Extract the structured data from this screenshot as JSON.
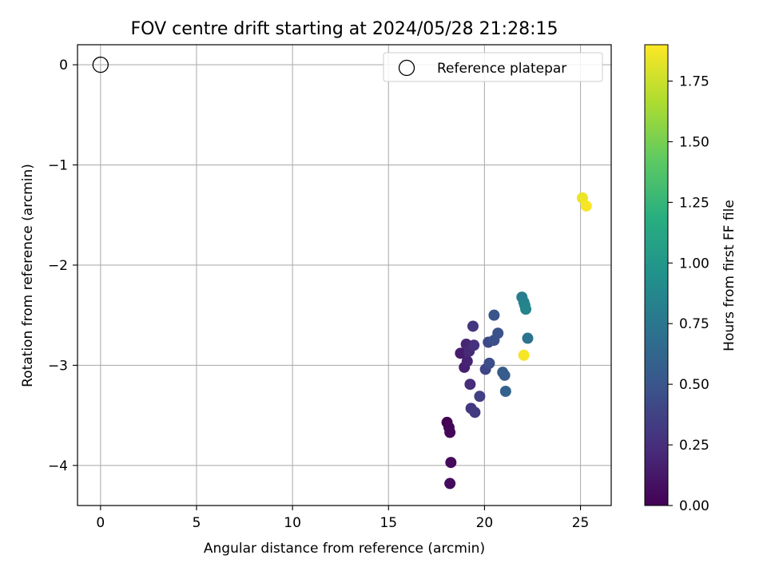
{
  "chart_data": {
    "type": "scatter",
    "title": "FOV centre drift starting at 2024/05/28 21:28:15",
    "xlabel": "Angular distance from reference (arcmin)",
    "ylabel": "Rotation from reference (arcmin)",
    "xlim": [
      -1.2,
      26.6
    ],
    "ylim": [
      -4.4,
      0.2
    ],
    "xticks": [
      0,
      5,
      10,
      15,
      20,
      25
    ],
    "yticks": [
      0,
      -1,
      -2,
      -3,
      -4
    ],
    "xtick_labels": [
      "0",
      "5",
      "10",
      "15",
      "20",
      "25"
    ],
    "ytick_labels": [
      "0",
      "−1",
      "−2",
      "−3",
      "−4"
    ],
    "grid": true,
    "legend": {
      "placement": "top-right",
      "entries": [
        "Reference platepar"
      ]
    },
    "reference_point": {
      "name": "Reference platepar",
      "x": 0,
      "y": 0
    },
    "colorbar": {
      "label": "Hours from first FF file",
      "range": [
        0,
        1.9
      ],
      "ticks": [
        0,
        0.25,
        0.5,
        0.75,
        1.0,
        1.25,
        1.5,
        1.75
      ],
      "tick_labels": [
        "0.00",
        "0.25",
        "0.50",
        "0.75",
        "1.00",
        "1.25",
        "1.50",
        "1.75"
      ],
      "colormap": "viridis"
    },
    "points": [
      {
        "x": 18.05,
        "y": -3.57,
        "c": 0.0
      },
      {
        "x": 18.15,
        "y": -3.62,
        "c": 0.02
      },
      {
        "x": 18.2,
        "y": -3.67,
        "c": 0.03
      },
      {
        "x": 18.25,
        "y": -3.97,
        "c": 0.05
      },
      {
        "x": 18.2,
        "y": -4.18,
        "c": 0.06
      },
      {
        "x": 18.75,
        "y": -2.88,
        "c": 0.15
      },
      {
        "x": 18.95,
        "y": -3.02,
        "c": 0.17
      },
      {
        "x": 19.1,
        "y": -2.96,
        "c": 0.19
      },
      {
        "x": 19.05,
        "y": -2.79,
        "c": 0.2
      },
      {
        "x": 19.2,
        "y": -2.86,
        "c": 0.22
      },
      {
        "x": 19.25,
        "y": -3.19,
        "c": 0.24
      },
      {
        "x": 19.45,
        "y": -2.8,
        "c": 0.26
      },
      {
        "x": 19.4,
        "y": -2.61,
        "c": 0.28
      },
      {
        "x": 19.3,
        "y": -3.43,
        "c": 0.3
      },
      {
        "x": 19.5,
        "y": -3.47,
        "c": 0.32
      },
      {
        "x": 19.75,
        "y": -3.31,
        "c": 0.36
      },
      {
        "x": 20.05,
        "y": -3.04,
        "c": 0.4
      },
      {
        "x": 20.2,
        "y": -2.77,
        "c": 0.42
      },
      {
        "x": 20.25,
        "y": -2.98,
        "c": 0.44
      },
      {
        "x": 20.5,
        "y": -2.75,
        "c": 0.46
      },
      {
        "x": 20.7,
        "y": -2.68,
        "c": 0.48
      },
      {
        "x": 20.5,
        "y": -2.5,
        "c": 0.5
      },
      {
        "x": 20.95,
        "y": -3.07,
        "c": 0.54
      },
      {
        "x": 21.05,
        "y": -3.1,
        "c": 0.56
      },
      {
        "x": 21.1,
        "y": -3.26,
        "c": 0.6
      },
      {
        "x": 21.95,
        "y": -2.32,
        "c": 0.8
      },
      {
        "x": 22.05,
        "y": -2.37,
        "c": 0.82
      },
      {
        "x": 22.1,
        "y": -2.4,
        "c": 0.84
      },
      {
        "x": 22.15,
        "y": -2.44,
        "c": 0.86
      },
      {
        "x": 22.25,
        "y": -2.73,
        "c": 0.72
      },
      {
        "x": 22.05,
        "y": -2.9,
        "c": 1.88
      },
      {
        "x": 25.1,
        "y": -1.33,
        "c": 1.85
      },
      {
        "x": 25.3,
        "y": -1.41,
        "c": 1.88
      }
    ]
  }
}
